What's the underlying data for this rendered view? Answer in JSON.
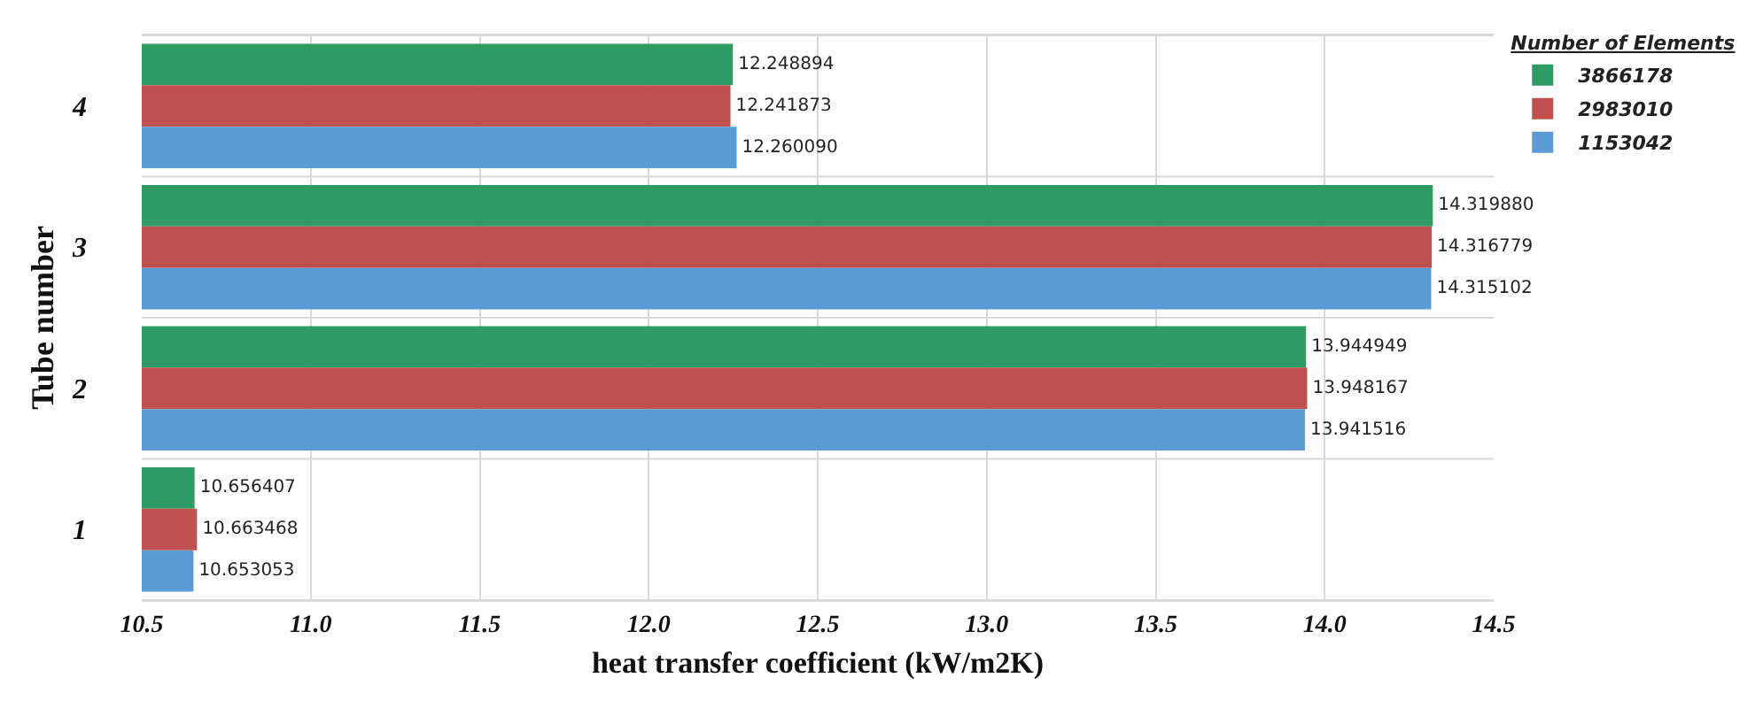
{
  "chart_data": {
    "type": "bar",
    "orientation": "horizontal",
    "xlabel": "heat transfer coefficient (kW/m2K)",
    "ylabel": "Tube number",
    "legend_title": "Number of Elements",
    "categories": [
      "4",
      "3",
      "2",
      "1"
    ],
    "series": [
      {
        "name": "3866178",
        "color": "#2e9a66",
        "values": [
          12.248894,
          14.31988,
          13.944949,
          10.656407
        ],
        "value_labels": [
          "12.248894",
          "14.319880",
          "13.944949",
          "10.656407"
        ]
      },
      {
        "name": "2983010",
        "color": "#c0504d",
        "values": [
          12.241873,
          14.316779,
          13.948167,
          10.663468
        ],
        "value_labels": [
          "12.241873",
          "14.316779",
          "13.948167",
          "10.663468"
        ]
      },
      {
        "name": "1153042",
        "color": "#5b9bd5",
        "values": [
          12.26009,
          14.315102,
          13.941516,
          10.653053
        ],
        "value_labels": [
          "12.260090",
          "14.315102",
          "13.941516",
          "10.653053"
        ]
      }
    ],
    "xlim": [
      10.5,
      14.5
    ],
    "xticks": [
      10.5,
      {
        "value": 11,
        "label": "11.0"
      },
      11.5,
      {
        "value": 12,
        "label": "12.0"
      },
      12.5,
      {
        "value": 13,
        "label": "13.0"
      },
      13.5,
      {
        "value": 14,
        "label": "14.0"
      },
      14.5
    ],
    "grid": true,
    "legend": "top right"
  }
}
